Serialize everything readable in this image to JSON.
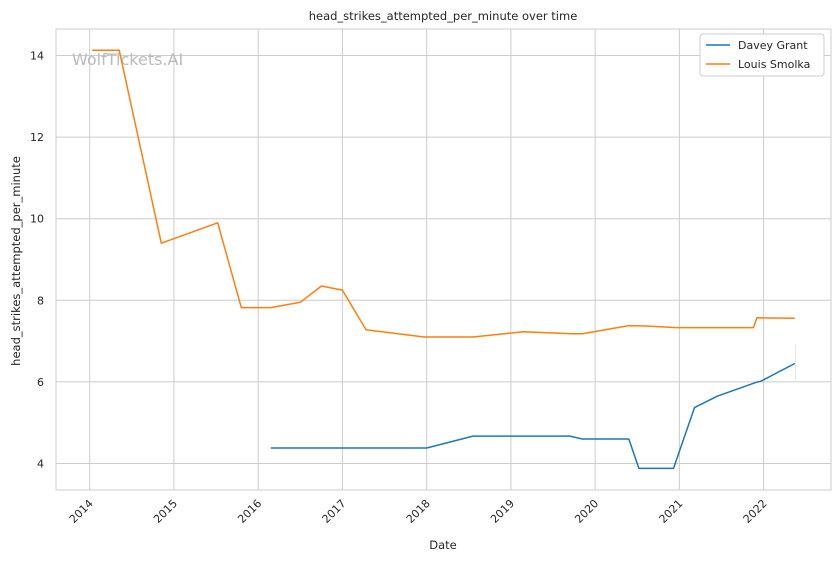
{
  "chart_data": {
    "type": "line",
    "title": "head_strikes_attempted_per_minute over time",
    "xlabel": "Date",
    "ylabel": "head_strikes_attempted_per_minute",
    "watermark": "WolfTickets.AI",
    "xlim": [
      2013.6,
      2022.8
    ],
    "ylim": [
      3.35,
      14.65
    ],
    "x_ticks": [
      {
        "value": 2014,
        "label": "2014"
      },
      {
        "value": 2015,
        "label": "2015"
      },
      {
        "value": 2016,
        "label": "2016"
      },
      {
        "value": 2017,
        "label": "2017"
      },
      {
        "value": 2018,
        "label": "2018"
      },
      {
        "value": 2019,
        "label": "2019"
      },
      {
        "value": 2020,
        "label": "2020"
      },
      {
        "value": 2021,
        "label": "2021"
      },
      {
        "value": 2022,
        "label": "2022"
      }
    ],
    "y_ticks": [
      {
        "value": 4,
        "label": "4"
      },
      {
        "value": 6,
        "label": "6"
      },
      {
        "value": 8,
        "label": "8"
      },
      {
        "value": 10,
        "label": "10"
      },
      {
        "value": 12,
        "label": "12"
      },
      {
        "value": 14,
        "label": "14"
      }
    ],
    "grid": true,
    "legend_position": "top-right",
    "series": [
      {
        "name": "Davey Grant",
        "color": "#1f77b4",
        "points": [
          [
            2016.15,
            4.38
          ],
          [
            2018.0,
            4.38
          ],
          [
            2018.55,
            4.67
          ],
          [
            2019.7,
            4.67
          ],
          [
            2019.85,
            4.6
          ],
          [
            2020.4,
            4.6
          ],
          [
            2020.52,
            3.88
          ],
          [
            2020.93,
            3.88
          ],
          [
            2021.18,
            5.37
          ],
          [
            2021.45,
            5.65
          ],
          [
            2021.9,
            5.98
          ],
          [
            2021.97,
            6.02
          ],
          [
            2022.37,
            6.45
          ]
        ]
      },
      {
        "name": "Louis Smolka",
        "color": "#ff7f0e",
        "points": [
          [
            2014.03,
            14.13
          ],
          [
            2014.35,
            14.13
          ],
          [
            2014.85,
            9.4
          ],
          [
            2015.52,
            9.9
          ],
          [
            2015.8,
            7.82
          ],
          [
            2016.15,
            7.82
          ],
          [
            2016.5,
            7.95
          ],
          [
            2016.75,
            8.35
          ],
          [
            2017.0,
            8.25
          ],
          [
            2017.28,
            7.28
          ],
          [
            2017.97,
            7.1
          ],
          [
            2018.55,
            7.1
          ],
          [
            2019.15,
            7.23
          ],
          [
            2019.72,
            7.18
          ],
          [
            2019.85,
            7.18
          ],
          [
            2020.4,
            7.38
          ],
          [
            2020.6,
            7.37
          ],
          [
            2020.97,
            7.33
          ],
          [
            2021.88,
            7.33
          ],
          [
            2021.92,
            7.57
          ],
          [
            2022.37,
            7.56
          ]
        ]
      }
    ]
  }
}
